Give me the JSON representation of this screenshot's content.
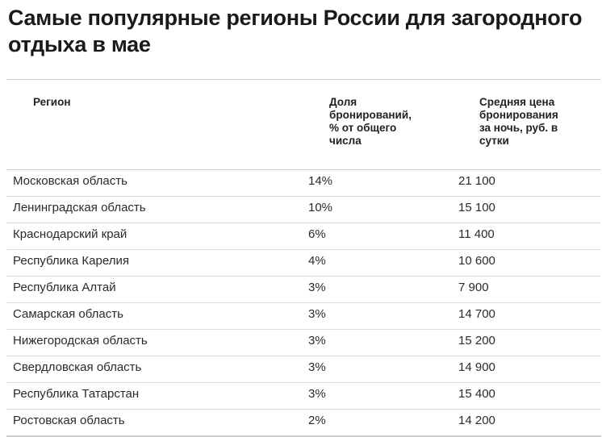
{
  "title": "Самые популярные регионы России для загородного отдыха в мае",
  "table": {
    "headers": {
      "region": "Регион",
      "share": "Доля\nбронирований,\n% от общего\nчисла",
      "price": "Средняя цена\nбронирования\nза ночь, руб. в\nсутки"
    },
    "rows": [
      {
        "region": "Московская область",
        "share": "14%",
        "price": "21 100"
      },
      {
        "region": "Ленинградская область",
        "share": "10%",
        "price": "15 100"
      },
      {
        "region": "Краснодарский край",
        "share": "6%",
        "price": "11 400"
      },
      {
        "region": "Республика Карелия",
        "share": "4%",
        "price": "10 600"
      },
      {
        "region": "Республика Алтай",
        "share": "3%",
        "price": "7 900"
      },
      {
        "region": "Самарская область",
        "share": "3%",
        "price": "14 700"
      },
      {
        "region": "Нижегородская область",
        "share": "3%",
        "price": "15 200"
      },
      {
        "region": "Свердловская область",
        "share": "3%",
        "price": "14 900"
      },
      {
        "region": "Республика Татарстан",
        "share": "3%",
        "price": "15 400"
      },
      {
        "region": "Ростовская область",
        "share": "2%",
        "price": "14 200"
      }
    ]
  }
}
